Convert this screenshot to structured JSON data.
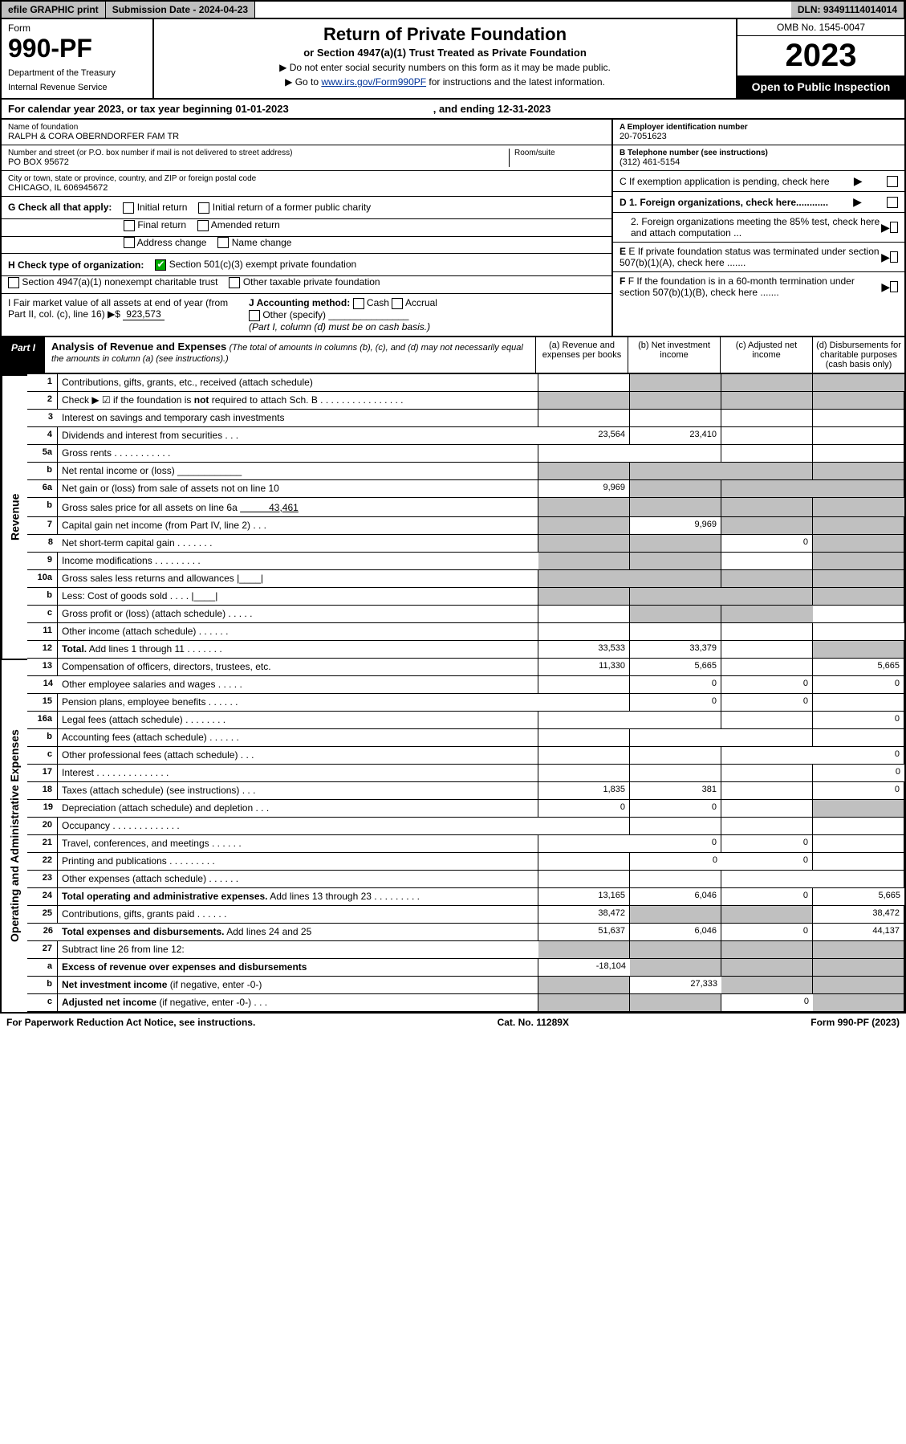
{
  "topbar": {
    "efile": "efile GRAPHIC print",
    "subdate_lbl": "Submission Date - 2024-04-23",
    "dln": "DLN: 93491114014014"
  },
  "header": {
    "form": "Form",
    "num": "990-PF",
    "dept": "Department of the Treasury",
    "irs": "Internal Revenue Service",
    "title": "Return of Private Foundation",
    "sub": "or Section 4947(a)(1) Trust Treated as Private Foundation",
    "note1": "▶ Do not enter social security numbers on this form as it may be made public.",
    "note2_pre": "▶ Go to ",
    "note2_link": "www.irs.gov/Form990PF",
    "note2_post": " for instructions and the latest information.",
    "omb": "OMB No. 1545-0047",
    "year": "2023",
    "open": "Open to Public Inspection"
  },
  "cal": {
    "a": "For calendar year 2023, or tax year beginning 01-01-2023",
    "b": ", and ending 12-31-2023"
  },
  "info": {
    "name_lbl": "Name of foundation",
    "name": "RALPH & CORA OBERNDORFER FAM TR",
    "addr_lbl": "Number and street (or P.O. box number if mail is not delivered to street address)",
    "room_lbl": "Room/suite",
    "addr": "PO BOX 95672",
    "city_lbl": "City or town, state or province, country, and ZIP or foreign postal code",
    "city": "CHICAGO, IL  606945672",
    "ein_lbl": "A Employer identification number",
    "ein": "20-7051623",
    "tel_lbl": "B Telephone number (see instructions)",
    "tel": "(312) 461-5154",
    "c": "C If exemption application is pending, check here",
    "d1": "D 1. Foreign organizations, check here............",
    "d2": "2. Foreign organizations meeting the 85% test, check here and attach computation ...",
    "e": "E If private foundation status was terminated under section 507(b)(1)(A), check here .......",
    "f": "F If the foundation is in a 60-month termination under section 507(b)(1)(B), check here .......",
    "g_lbl": "G Check all that apply:",
    "g_opts": [
      "Initial return",
      "Final return",
      "Address change",
      "Initial return of a former public charity",
      "Amended return",
      "Name change"
    ],
    "h_lbl": "H Check type of organization:",
    "h1": "Section 501(c)(3) exempt private foundation",
    "h2": "Section 4947(a)(1) nonexempt charitable trust",
    "h3": "Other taxable private foundation",
    "i_lbl": "I Fair market value of all assets at end of year (from Part II, col. (c), line 16)",
    "i_val": "923,573",
    "j_lbl": "J Accounting method:",
    "j_cash": "Cash",
    "j_accr": "Accrual",
    "j_oth": "Other (specify)",
    "j_note": "(Part I, column (d) must be on cash basis.)"
  },
  "part1": {
    "lbl": "Part I",
    "title": "Analysis of Revenue and Expenses",
    "sub": "(The total of amounts in columns (b), (c), and (d) may not necessarily equal the amounts in column (a) (see instructions).)",
    "cols": [
      "(a)  Revenue and expenses per books",
      "(b)  Net investment income",
      "(c)  Adjusted net income",
      "(d)  Disbursements for charitable purposes (cash basis only)"
    ],
    "side_rev": "Revenue",
    "side_exp": "Operating and Administrative Expenses"
  },
  "rows": [
    {
      "n": "1",
      "d": "Contributions, gifts, grants, etc., received (attach schedule)",
      "a": "",
      "b": "",
      "c": "",
      "dd": "",
      "shade_bcd": true
    },
    {
      "n": "2",
      "d": "Check ▶ ☑ if the foundation is <b>not</b> required to attach Sch. B    .  .  .  .  .  .  .  .  .  .  .  .  .  .  .  .",
      "shade_all": true
    },
    {
      "n": "3",
      "d": "Interest on savings and temporary cash investments",
      "a": "",
      "b": "",
      "c": "",
      "dd": ""
    },
    {
      "n": "4",
      "d": "Dividends and interest from securities   .   .   .",
      "a": "23,564",
      "b": "23,410",
      "c": "",
      "dd": ""
    },
    {
      "n": "5a",
      "d": "Gross rents     .   .   .   .   .   .   .   .   .   .   .",
      "a": "",
      "b": "",
      "c": "",
      "dd": ""
    },
    {
      "n": "b",
      "d": "Net rental income or (loss) ____________",
      "shade_all": true
    },
    {
      "n": "6a",
      "d": "Net gain or (loss) from sale of assets not on line 10",
      "a": "9,969",
      "shade_bcd": true
    },
    {
      "n": "b",
      "d": "Gross sales price for all assets on line 6a <u>　　　43,461</u>",
      "shade_all": true
    },
    {
      "n": "7",
      "d": "Capital gain net income (from Part IV, line 2)   .   .   .",
      "shade_a": true,
      "b": "9,969",
      "shade_cd": true
    },
    {
      "n": "8",
      "d": "Net short-term capital gain   .   .   .   .   .   .   .",
      "shade_ab": true,
      "c": "0",
      "shade_d": true
    },
    {
      "n": "9",
      "d": "Income modifications .   .   .   .   .   .   .   .   .",
      "shade_ab": true,
      "c": "",
      "shade_d": true
    },
    {
      "n": "10a",
      "d": "Gross sales less returns and allowances  |____|",
      "shade_all": true
    },
    {
      "n": "b",
      "d": "Less: Cost of goods sold     .   .   .   .  |____|",
      "shade_all": true
    },
    {
      "n": "c",
      "d": "Gross profit or (loss) (attach schedule)    .   .   .   .   .",
      "a": "",
      "shade_bc": true,
      "dd": ""
    },
    {
      "n": "11",
      "d": "Other income (attach schedule)    .   .   .   .   .   .",
      "a": "",
      "b": "",
      "c": "",
      "dd": ""
    },
    {
      "n": "12",
      "d": "<b>Total.</b> Add lines 1 through 11   .   .   .   .   .   .   .",
      "a": "33,533",
      "b": "33,379",
      "c": "",
      "shade_d": true
    }
  ],
  "rows2": [
    {
      "n": "13",
      "d": "Compensation of officers, directors, trustees, etc.",
      "a": "11,330",
      "b": "5,665",
      "c": "",
      "dd": "5,665"
    },
    {
      "n": "14",
      "d": "Other employee salaries and wages    .   .   .   .   .",
      "a": "",
      "b": "0",
      "c": "0",
      "dd": "0"
    },
    {
      "n": "15",
      "d": "Pension plans, employee benefits   .   .   .   .   .   .",
      "a": "",
      "b": "0",
      "c": "0",
      "dd": ""
    },
    {
      "n": "16a",
      "d": "Legal fees (attach schedule) .   .   .   .   .   .   .   .",
      "a": "",
      "b": "",
      "c": "",
      "dd": "0"
    },
    {
      "n": "b",
      "d": "Accounting fees (attach schedule)  .   .   .   .   .   .",
      "a": "",
      "b": "",
      "c": "",
      "dd": ""
    },
    {
      "n": "c",
      "d": "Other professional fees (attach schedule)    .   .   .",
      "a": "",
      "b": "",
      "c": "",
      "dd": "0"
    },
    {
      "n": "17",
      "d": "Interest .   .   .   .   .   .   .   .   .   .   .   .   .   .",
      "a": "",
      "b": "",
      "c": "",
      "dd": "0"
    },
    {
      "n": "18",
      "d": "Taxes (attach schedule) (see instructions)    .   .   .",
      "a": "1,835",
      "b": "381",
      "c": "",
      "dd": "0"
    },
    {
      "n": "19",
      "d": "Depreciation (attach schedule) and depletion    .   .   .",
      "a": "0",
      "b": "0",
      "c": "",
      "shade_d": true
    },
    {
      "n": "20",
      "d": "Occupancy .   .   .   .   .   .   .   .   .   .   .   .   .",
      "a": "",
      "b": "",
      "c": "",
      "dd": ""
    },
    {
      "n": "21",
      "d": "Travel, conferences, and meetings .   .   .   .   .   .",
      "a": "",
      "b": "0",
      "c": "0",
      "dd": ""
    },
    {
      "n": "22",
      "d": "Printing and publications .   .   .   .   .   .   .   .   .",
      "a": "",
      "b": "0",
      "c": "0",
      "dd": ""
    },
    {
      "n": "23",
      "d": "Other expenses (attach schedule)   .   .   .   .   .   .",
      "a": "",
      "b": "",
      "c": "",
      "dd": ""
    },
    {
      "n": "24",
      "d": "<b>Total operating and administrative expenses.</b> Add lines 13 through 23   .   .   .   .   .   .   .   .   .",
      "a": "13,165",
      "b": "6,046",
      "c": "0",
      "dd": "5,665"
    },
    {
      "n": "25",
      "d": "Contributions, gifts, grants paid    .   .   .   .   .   .",
      "a": "38,472",
      "shade_bc": true,
      "dd": "38,472"
    },
    {
      "n": "26",
      "d": "<b>Total expenses and disbursements.</b> Add lines 24 and 25",
      "a": "51,637",
      "b": "6,046",
      "c": "0",
      "dd": "44,137"
    },
    {
      "n": "27",
      "d": "Subtract line 26 from line 12:",
      "shade_all": true
    },
    {
      "n": "a",
      "d": "<b>Excess of revenue over expenses and disbursements</b>",
      "a": "-18,104",
      "shade_bcd": true
    },
    {
      "n": "b",
      "d": "<b>Net investment income</b> (if negative, enter -0-)",
      "shade_a": true,
      "b": "27,333",
      "shade_cd": true
    },
    {
      "n": "c",
      "d": "<b>Adjusted net income</b> (if negative, enter -0-)   .   .   .",
      "shade_ab": true,
      "c": "0",
      "shade_d": true
    }
  ],
  "footer": {
    "pra": "For Paperwork Reduction Act Notice, see instructions.",
    "cat": "Cat. No. 11289X",
    "form": "Form 990-PF (2023)"
  }
}
